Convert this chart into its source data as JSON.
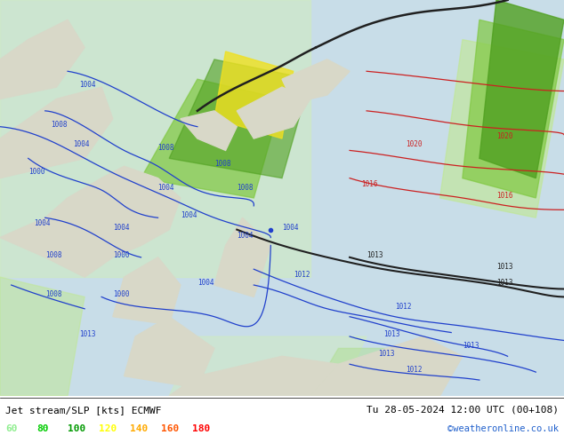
{
  "title_left": "Jet stream/SLP [kts] ECMWF",
  "title_right": "Tu 28-05-2024 12:00 UTC (00+108)",
  "credit": "©weatheronline.co.uk",
  "legend_values": [
    60,
    80,
    100,
    120,
    140,
    160,
    180
  ],
  "legend_colors": [
    "#90ee90",
    "#00cc00",
    "#009900",
    "#ffff00",
    "#ffaa00",
    "#ff5500",
    "#ff0000"
  ],
  "bg_color": "#d0e8f0",
  "land_color": "#e8e8d8",
  "figsize": [
    6.34,
    4.9
  ],
  "dpi": 100
}
